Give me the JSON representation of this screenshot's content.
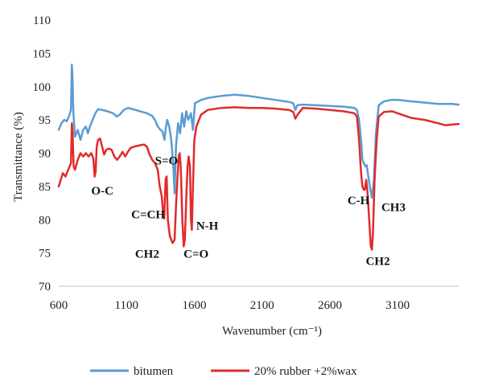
{
  "chart_data": {
    "type": "line",
    "title": "",
    "xlabel": "Wavenumber (cm⁻¹)",
    "ylabel": "Transmittance (%)",
    "xlim": [
      600,
      3550
    ],
    "ylim": [
      70,
      110
    ],
    "x_ticks": [
      600,
      1100,
      1600,
      2100,
      2600,
      3100
    ],
    "y_ticks": [
      70,
      75,
      80,
      85,
      90,
      95,
      100,
      105,
      110
    ],
    "grid": false,
    "legend_position": "bottom",
    "series": [
      {
        "name": "bitumen",
        "color": "#5b9bd5",
        "points": [
          [
            600,
            93.5
          ],
          [
            620,
            94.5
          ],
          [
            640,
            95
          ],
          [
            660,
            94.8
          ],
          [
            680,
            95.8
          ],
          [
            690,
            96.5
          ],
          [
            697,
            103.3
          ],
          [
            702,
            101
          ],
          [
            708,
            96
          ],
          [
            720,
            92.5
          ],
          [
            740,
            93.5
          ],
          [
            760,
            92
          ],
          [
            780,
            93.5
          ],
          [
            800,
            94
          ],
          [
            815,
            93
          ],
          [
            830,
            94
          ],
          [
            850,
            95
          ],
          [
            870,
            96
          ],
          [
            890,
            96.6
          ],
          [
            920,
            96.5
          ],
          [
            960,
            96.3
          ],
          [
            1000,
            96
          ],
          [
            1030,
            95.5
          ],
          [
            1050,
            95.8
          ],
          [
            1080,
            96.5
          ],
          [
            1110,
            96.8
          ],
          [
            1150,
            96.6
          ],
          [
            1200,
            96.3
          ],
          [
            1250,
            96
          ],
          [
            1290,
            95.6
          ],
          [
            1310,
            95
          ],
          [
            1330,
            94
          ],
          [
            1350,
            93.5
          ],
          [
            1365,
            93.3
          ],
          [
            1380,
            92
          ],
          [
            1390,
            93.8
          ],
          [
            1400,
            95
          ],
          [
            1415,
            94
          ],
          [
            1430,
            92
          ],
          [
            1445,
            88
          ],
          [
            1455,
            84
          ],
          [
            1465,
            91
          ],
          [
            1480,
            94.5
          ],
          [
            1495,
            93
          ],
          [
            1510,
            96
          ],
          [
            1525,
            94
          ],
          [
            1540,
            96.3
          ],
          [
            1555,
            95
          ],
          [
            1575,
            96
          ],
          [
            1590,
            93.5
          ],
          [
            1605,
            97.5
          ],
          [
            1650,
            98
          ],
          [
            1700,
            98.3
          ],
          [
            1800,
            98.6
          ],
          [
            1900,
            98.8
          ],
          [
            2000,
            98.6
          ],
          [
            2100,
            98.3
          ],
          [
            2200,
            98
          ],
          [
            2300,
            97.7
          ],
          [
            2330,
            97.5
          ],
          [
            2345,
            96.5
          ],
          [
            2360,
            97.2
          ],
          [
            2400,
            97.3
          ],
          [
            2500,
            97.2
          ],
          [
            2600,
            97.1
          ],
          [
            2700,
            97
          ],
          [
            2780,
            96.8
          ],
          [
            2800,
            96.5
          ],
          [
            2815,
            95
          ],
          [
            2830,
            92
          ],
          [
            2840,
            89
          ],
          [
            2850,
            88.5
          ],
          [
            2862,
            88
          ],
          [
            2872,
            88.2
          ],
          [
            2880,
            87
          ],
          [
            2895,
            85
          ],
          [
            2910,
            83.3
          ],
          [
            2925,
            86
          ],
          [
            2940,
            93
          ],
          [
            2960,
            97.2
          ],
          [
            3000,
            97.8
          ],
          [
            3050,
            98
          ],
          [
            3100,
            98
          ],
          [
            3200,
            97.8
          ],
          [
            3300,
            97.6
          ],
          [
            3400,
            97.4
          ],
          [
            3500,
            97.4
          ],
          [
            3550,
            97.3
          ]
        ]
      },
      {
        "name": "20% rubber +2%wax",
        "color": "#e02b2b",
        "points": [
          [
            600,
            85
          ],
          [
            615,
            86
          ],
          [
            630,
            87
          ],
          [
            650,
            86.5
          ],
          [
            670,
            87.5
          ],
          [
            690,
            88.5
          ],
          [
            697,
            94.5
          ],
          [
            702,
            93
          ],
          [
            710,
            88
          ],
          [
            720,
            87.5
          ],
          [
            740,
            89
          ],
          [
            760,
            90
          ],
          [
            780,
            89.5
          ],
          [
            800,
            90
          ],
          [
            820,
            89.5
          ],
          [
            840,
            90
          ],
          [
            855,
            89.2
          ],
          [
            865,
            86.5
          ],
          [
            872,
            87.2
          ],
          [
            880,
            91
          ],
          [
            890,
            92
          ],
          [
            905,
            92.2
          ],
          [
            920,
            91
          ],
          [
            935,
            89.8
          ],
          [
            950,
            90.5
          ],
          [
            970,
            90.7
          ],
          [
            990,
            90.5
          ],
          [
            1010,
            89.5
          ],
          [
            1030,
            89
          ],
          [
            1050,
            89.5
          ],
          [
            1070,
            90.2
          ],
          [
            1090,
            89.5
          ],
          [
            1110,
            90.2
          ],
          [
            1130,
            90.8
          ],
          [
            1160,
            91
          ],
          [
            1200,
            91.2
          ],
          [
            1230,
            91.3
          ],
          [
            1250,
            91
          ],
          [
            1270,
            89.8
          ],
          [
            1290,
            89
          ],
          [
            1310,
            88.5
          ],
          [
            1330,
            87.5
          ],
          [
            1345,
            85
          ],
          [
            1360,
            83.5
          ],
          [
            1372,
            80.5
          ],
          [
            1378,
            80.2
          ],
          [
            1388,
            86
          ],
          [
            1396,
            86.5
          ],
          [
            1405,
            80
          ],
          [
            1420,
            77.5
          ],
          [
            1440,
            76.5
          ],
          [
            1455,
            77
          ],
          [
            1465,
            82
          ],
          [
            1475,
            86
          ],
          [
            1485,
            89.5
          ],
          [
            1492,
            90
          ],
          [
            1500,
            88
          ],
          [
            1512,
            80
          ],
          [
            1522,
            76
          ],
          [
            1530,
            77
          ],
          [
            1540,
            83
          ],
          [
            1550,
            88
          ],
          [
            1558,
            89.5
          ],
          [
            1568,
            88
          ],
          [
            1575,
            80
          ],
          [
            1582,
            78.5
          ],
          [
            1590,
            85
          ],
          [
            1600,
            92
          ],
          [
            1615,
            94
          ],
          [
            1650,
            95.8
          ],
          [
            1700,
            96.5
          ],
          [
            1800,
            96.8
          ],
          [
            1900,
            96.9
          ],
          [
            2000,
            96.8
          ],
          [
            2100,
            96.8
          ],
          [
            2200,
            96.7
          ],
          [
            2300,
            96.5
          ],
          [
            2330,
            96.2
          ],
          [
            2345,
            95.2
          ],
          [
            2362,
            95.8
          ],
          [
            2400,
            96.8
          ],
          [
            2500,
            96.7
          ],
          [
            2600,
            96.5
          ],
          [
            2700,
            96.3
          ],
          [
            2780,
            96
          ],
          [
            2800,
            95.5
          ],
          [
            2815,
            92
          ],
          [
            2830,
            87
          ],
          [
            2840,
            85
          ],
          [
            2850,
            84.5
          ],
          [
            2858,
            84.5
          ],
          [
            2868,
            86
          ],
          [
            2878,
            84
          ],
          [
            2890,
            80
          ],
          [
            2902,
            76
          ],
          [
            2910,
            75.5
          ],
          [
            2918,
            78
          ],
          [
            2930,
            86
          ],
          [
            2945,
            92
          ],
          [
            2960,
            95.5
          ],
          [
            3000,
            96.2
          ],
          [
            3060,
            96.3
          ],
          [
            3100,
            96
          ],
          [
            3200,
            95.3
          ],
          [
            3300,
            95
          ],
          [
            3400,
            94.5
          ],
          [
            3450,
            94.2
          ],
          [
            3500,
            94.3
          ],
          [
            3550,
            94.4
          ]
        ]
      }
    ],
    "annotations": [
      {
        "text": "O-C",
        "x": 840,
        "y": 83.8
      },
      {
        "text": "S=O",
        "x": 1310,
        "y": 88.3
      },
      {
        "text": "C=CH",
        "x": 1135,
        "y": 80.2
      },
      {
        "text": "CH2",
        "x": 1163,
        "y": 74.3
      },
      {
        "text": "C=O",
        "x": 1521,
        "y": 74.3
      },
      {
        "text": "N-H",
        "x": 1614,
        "y": 78.5
      },
      {
        "text": "C-H",
        "x": 2730,
        "y": 82.3
      },
      {
        "text": "CH3",
        "x": 2980,
        "y": 81.3
      },
      {
        "text": "CH2",
        "x": 2865,
        "y": 73.2
      }
    ]
  }
}
